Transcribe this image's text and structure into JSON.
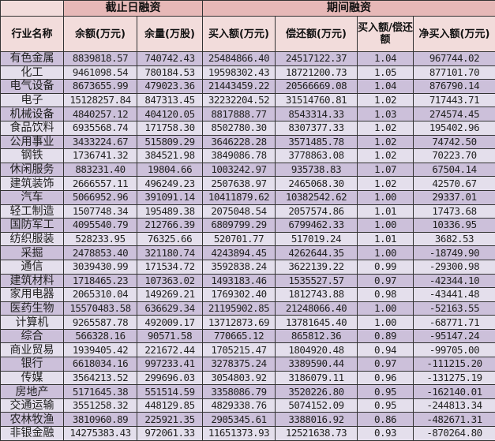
{
  "table": {
    "group_headers": {
      "closing": "截止日融资",
      "period": "期间融资"
    },
    "columns": [
      "行业名称",
      "余额(万元)",
      "余量(万股)",
      "买入额(万元)",
      "偿还额(万元)",
      "买入额/偿还额",
      "净买入额(万元)"
    ],
    "rows": [
      [
        "有色金属",
        "8839818.57",
        "740742.43",
        "25484866.40",
        "24517122.37",
        "1.04",
        "967744.02"
      ],
      [
        "化工",
        "9461098.54",
        "780184.53",
        "19598302.43",
        "18721200.73",
        "1.05",
        "877101.70"
      ],
      [
        "电气设备",
        "8673655.99",
        "479023.36",
        "21443459.22",
        "20566669.08",
        "1.04",
        "876790.14"
      ],
      [
        "电子",
        "15128257.84",
        "847313.45",
        "32232204.52",
        "31514760.81",
        "1.02",
        "717443.71"
      ],
      [
        "机械设备",
        "4840257.12",
        "404120.05",
        "8817888.77",
        "8543314.33",
        "1.03",
        "274574.45"
      ],
      [
        "食品饮料",
        "6935568.74",
        "171758.30",
        "8502780.30",
        "8307377.33",
        "1.02",
        "195402.96"
      ],
      [
        "公用事业",
        "3433224.67",
        "515809.29",
        "3646228.28",
        "3571485.78",
        "1.02",
        "74742.50"
      ],
      [
        "钢铁",
        "1736741.32",
        "384521.98",
        "3849086.78",
        "3778863.08",
        "1.02",
        "70223.70"
      ],
      [
        "休闲服务",
        "883231.40",
        "19804.66",
        "1003242.97",
        "935738.83",
        "1.07",
        "67504.14"
      ],
      [
        "建筑装饰",
        "2666557.11",
        "496249.23",
        "2507638.97",
        "2465068.30",
        "1.02",
        "42570.67"
      ],
      [
        "汽车",
        "5066952.96",
        "391091.14",
        "10411879.62",
        "10382542.62",
        "1.00",
        "29337.01"
      ],
      [
        "轻工制造",
        "1507748.34",
        "195489.38",
        "2075048.54",
        "2057574.86",
        "1.01",
        "17473.68"
      ],
      [
        "国防军工",
        "4095540.79",
        "212766.39",
        "6809799.29",
        "6799462.33",
        "1.00",
        "10336.95"
      ],
      [
        "纺织服装",
        "528233.95",
        "76325.66",
        "520701.77",
        "517019.24",
        "1.01",
        "3682.53"
      ],
      [
        "采掘",
        "2478853.40",
        "321180.74",
        "4243894.45",
        "4262644.35",
        "1.00",
        "-18749.90"
      ],
      [
        "通信",
        "3039430.99",
        "171534.72",
        "3592838.24",
        "3622139.22",
        "0.99",
        "-29300.98"
      ],
      [
        "建筑材料",
        "1718465.23",
        "107363.02",
        "1493183.46",
        "1535527.57",
        "0.97",
        "-42344.10"
      ],
      [
        "家用电器",
        "2065310.04",
        "149269.21",
        "1769302.40",
        "1812743.88",
        "0.98",
        "-43441.48"
      ],
      [
        "医药生物",
        "15570483.58",
        "636629.34",
        "21195902.85",
        "21248066.40",
        "1.00",
        "-52163.55"
      ],
      [
        "计算机",
        "9265587.78",
        "492009.17",
        "13712873.69",
        "13781645.40",
        "1.00",
        "-68771.71"
      ],
      [
        "综合",
        "566328.16",
        "90571.58",
        "770665.12",
        "865812.36",
        "0.89",
        "-95147.24"
      ],
      [
        "商业贸易",
        "1939405.42",
        "221672.44",
        "1705215.47",
        "1804920.48",
        "0.94",
        "-99705.00"
      ],
      [
        "银行",
        "6618034.16",
        "997233.41",
        "3278375.24",
        "3389590.44",
        "0.97",
        "-111215.20"
      ],
      [
        "传媒",
        "3564213.52",
        "299696.03",
        "3054803.92",
        "3186079.11",
        "0.96",
        "-131275.19"
      ],
      [
        "房地产",
        "5171645.38",
        "551514.59",
        "3358086.79",
        "3520226.80",
        "0.95",
        "-162140.01"
      ],
      [
        "交通运输",
        "3551258.32",
        "448129.85",
        "4829338.76",
        "5074152.09",
        "0.95",
        "-244813.34"
      ],
      [
        "农林牧渔",
        "3810960.89",
        "225921.35",
        "2905345.61",
        "3388016.92",
        "0.86",
        "-482671.31"
      ],
      [
        "非银金融",
        "14275383.43",
        "972061.33",
        "11651373.93",
        "12521638.73",
        "0.93",
        "-870264.80"
      ]
    ]
  },
  "colors": {
    "header_group": "#e6b8b7",
    "header": "#f2dcdb",
    "row_odd": "#ccc0da",
    "row_even": "#e4dfec"
  }
}
